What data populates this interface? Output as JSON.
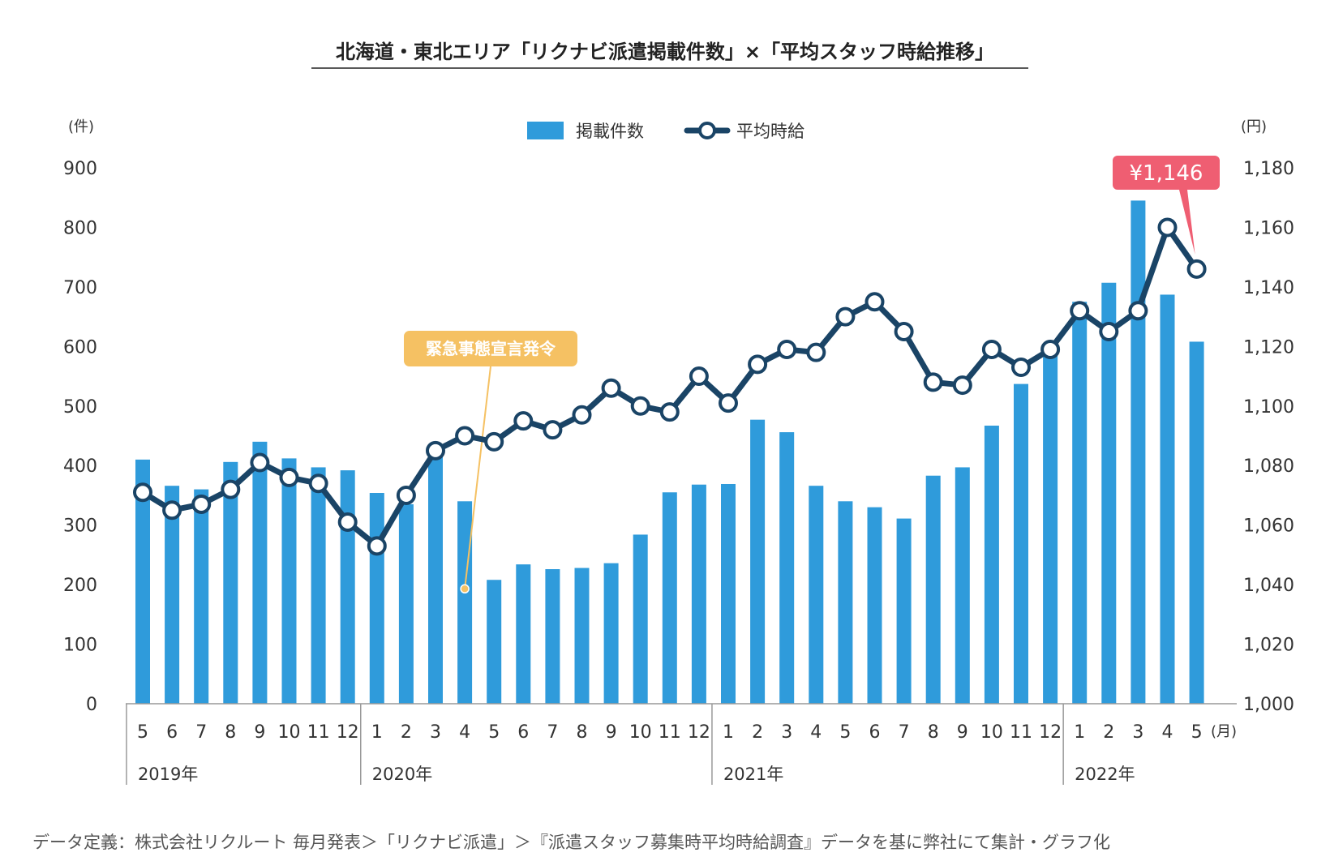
{
  "title": "北海道・東北エリア「リクナビ派遣掲載件数」×「平均スタッフ時給推移」",
  "legend": {
    "bar_label": "掲載件数",
    "line_label": "平均時給"
  },
  "left_axis": {
    "unit": "(件)",
    "ticks": [
      "0",
      "100",
      "200",
      "300",
      "400",
      "500",
      "600",
      "700",
      "800",
      "900"
    ]
  },
  "right_axis": {
    "unit": "(円)",
    "ticks": [
      "1,000",
      "1,020",
      "1,040",
      "1,060",
      "1,080",
      "1,100",
      "1,120",
      "1,140",
      "1,160",
      "1,180"
    ]
  },
  "month_unit": "(月)",
  "years": [
    "2019年",
    "2020年",
    "2021年",
    "2022年"
  ],
  "callout": {
    "label": "緊急事態宣言発令"
  },
  "highlight": {
    "label": "¥1,146"
  },
  "footnote": "データ定義：株式会社リクルート 毎月発表＞「リクナビ派遣」＞『派遣スタッフ募集時平均時給調査』データを基に弊社にて集計・グラフ化",
  "colors": {
    "bar": "#2f9bdb",
    "line": "#1a4466",
    "callout": "#f5c163",
    "highlight": "#ef5e72"
  },
  "chart_data": {
    "type": "bar+line",
    "categories": [
      "5",
      "6",
      "7",
      "8",
      "9",
      "10",
      "11",
      "12",
      "1",
      "2",
      "3",
      "4",
      "5",
      "6",
      "7",
      "8",
      "9",
      "10",
      "11",
      "12",
      "1",
      "2",
      "3",
      "4",
      "5",
      "6",
      "7",
      "8",
      "9",
      "10",
      "11",
      "12",
      "1",
      "2",
      "3",
      "4",
      "5"
    ],
    "year_groups": [
      {
        "year": "2019年",
        "start": 0,
        "count": 8
      },
      {
        "year": "2020年",
        "start": 8,
        "count": 12
      },
      {
        "year": "2021年",
        "start": 20,
        "count": 12
      },
      {
        "year": "2022年",
        "start": 32,
        "count": 5
      }
    ],
    "series": [
      {
        "name": "掲載件数",
        "type": "bar",
        "axis": "left",
        "values": [
          410,
          366,
          360,
          406,
          440,
          412,
          397,
          392,
          354,
          335,
          420,
          340,
          208,
          234,
          226,
          228,
          236,
          284,
          355,
          368,
          369,
          477,
          456,
          366,
          340,
          330,
          311,
          383,
          397,
          467,
          537,
          592,
          675,
          707,
          845,
          687,
          608
        ]
      },
      {
        "name": "平均時給",
        "type": "line",
        "axis": "right",
        "values": [
          1071,
          1065,
          1067,
          1072,
          1081,
          1076,
          1074,
          1061,
          1053,
          1070,
          1085,
          1090,
          1088,
          1095,
          1092,
          1097,
          1106,
          1100,
          1098,
          1110,
          1101,
          1114,
          1119,
          1118,
          1130,
          1135,
          1125,
          1108,
          1107,
          1119,
          1113,
          1119,
          1132,
          1125,
          1132,
          1160,
          1146
        ]
      }
    ],
    "ylim_left": [
      0,
      900
    ],
    "ylim_right": [
      1000,
      1180
    ],
    "callout_index": 11,
    "highlight_index": 36
  }
}
